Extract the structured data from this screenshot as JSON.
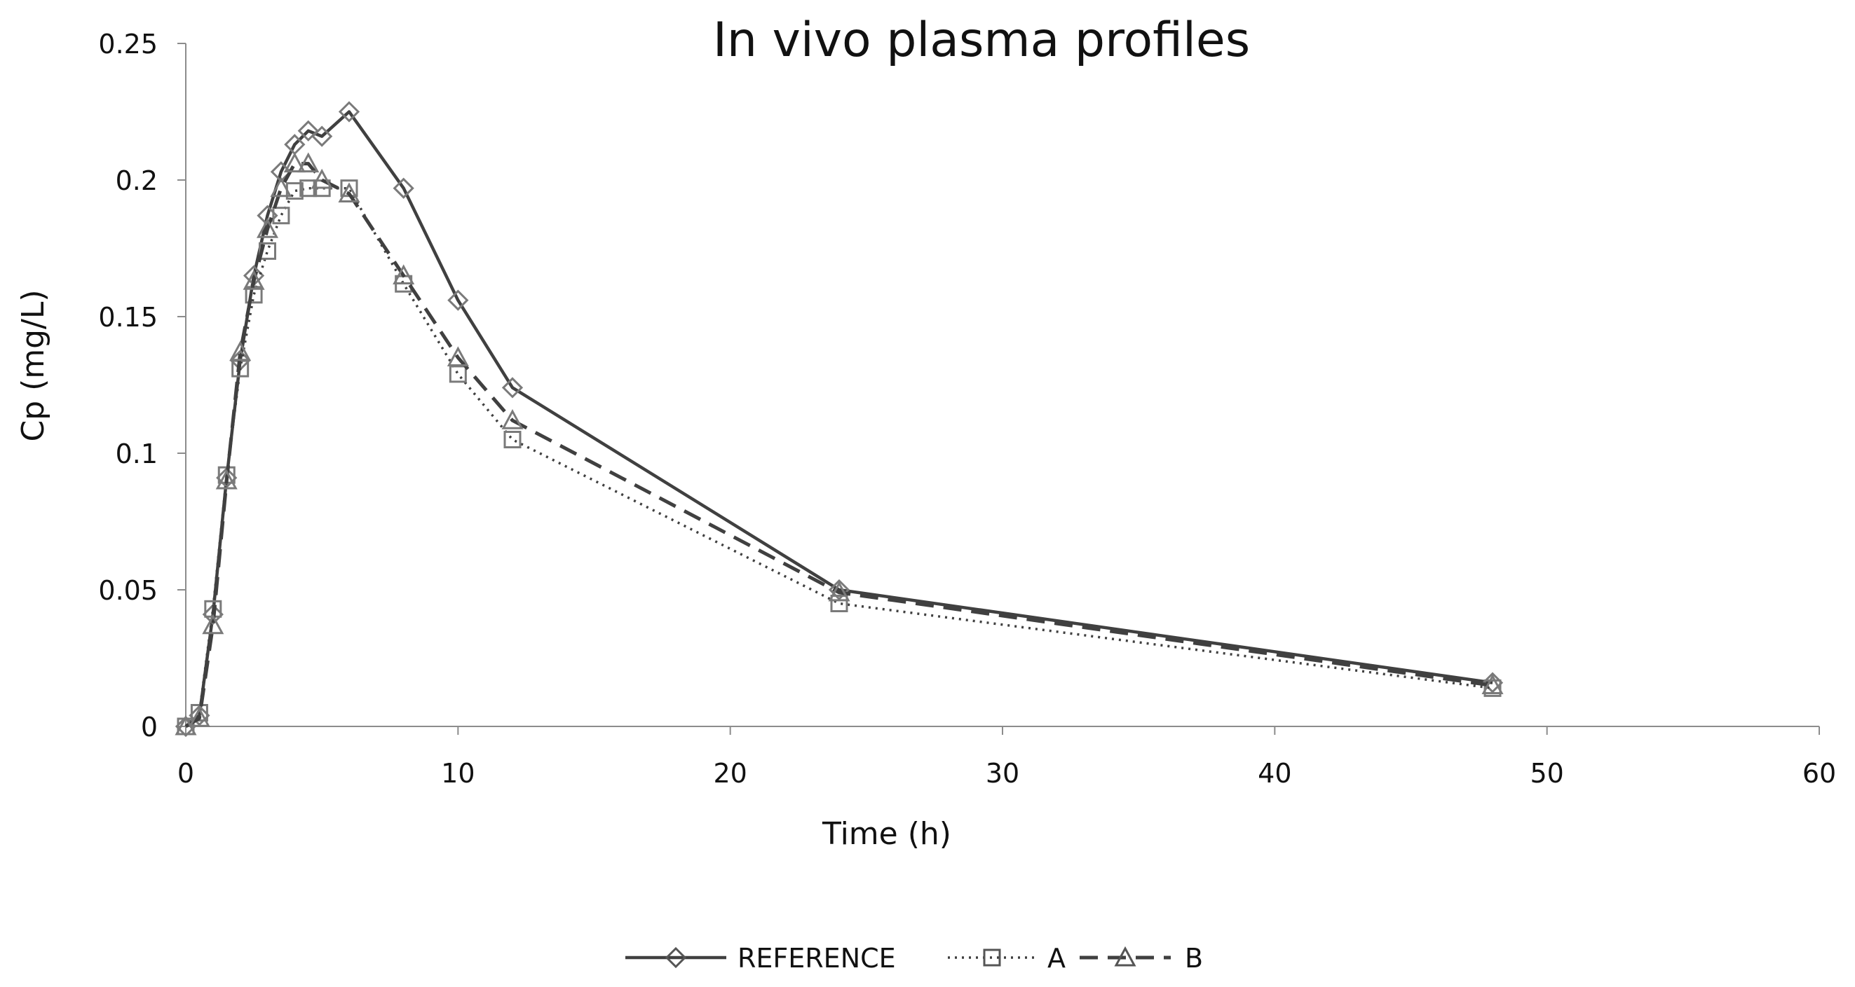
{
  "chart_data": {
    "type": "line",
    "title": "In vivo plasma profiles",
    "xlabel": "Time (h)",
    "ylabel": "Cp (mg/L)",
    "xlim": [
      0,
      60
    ],
    "ylim": [
      0,
      0.25
    ],
    "xticks": [
      0,
      10,
      20,
      30,
      40,
      50,
      60
    ],
    "yticks": [
      0,
      0.05,
      0.1,
      0.15,
      0.2,
      0.25
    ],
    "xtick_labels": [
      "0",
      "10",
      "20",
      "30",
      "40",
      "50",
      "60"
    ],
    "ytick_labels": [
      "0",
      "0.05",
      "0.1",
      "0.15",
      "0.2",
      "0.25"
    ],
    "grid": false,
    "legend_position": "bottom-center",
    "series": [
      {
        "name": "REFERENCE",
        "line_style": "solid",
        "marker": "diamond",
        "color": "#404040",
        "x": [
          0,
          0.5,
          1,
          1.5,
          2,
          2.5,
          3,
          3.5,
          4,
          4.5,
          5,
          6,
          8,
          10,
          12,
          24,
          48
        ],
        "y": [
          0,
          0.004,
          0.041,
          0.091,
          0.134,
          0.165,
          0.187,
          0.203,
          0.213,
          0.218,
          0.216,
          0.225,
          0.197,
          0.156,
          0.124,
          0.05,
          0.016
        ]
      },
      {
        "name": "A",
        "line_style": "dotted",
        "marker": "square",
        "color": "#404040",
        "x": [
          0,
          0.5,
          1,
          1.5,
          2,
          2.5,
          3,
          3.5,
          4,
          4.5,
          5,
          6,
          8,
          10,
          12,
          24,
          48
        ],
        "y": [
          0,
          0.005,
          0.043,
          0.092,
          0.131,
          0.158,
          0.174,
          0.187,
          0.196,
          0.197,
          0.197,
          0.197,
          0.162,
          0.129,
          0.105,
          0.045,
          0.014
        ]
      },
      {
        "name": "B",
        "line_style": "dashed",
        "marker": "triangle",
        "color": "#404040",
        "x": [
          0,
          0.5,
          1,
          1.5,
          2,
          2.5,
          3,
          3.5,
          4,
          4.5,
          5,
          6,
          8,
          10,
          12,
          24,
          48
        ],
        "y": [
          0,
          0.003,
          0.037,
          0.09,
          0.137,
          0.163,
          0.182,
          0.197,
          0.206,
          0.206,
          0.2,
          0.195,
          0.165,
          0.135,
          0.112,
          0.049,
          0.015
        ]
      }
    ]
  }
}
